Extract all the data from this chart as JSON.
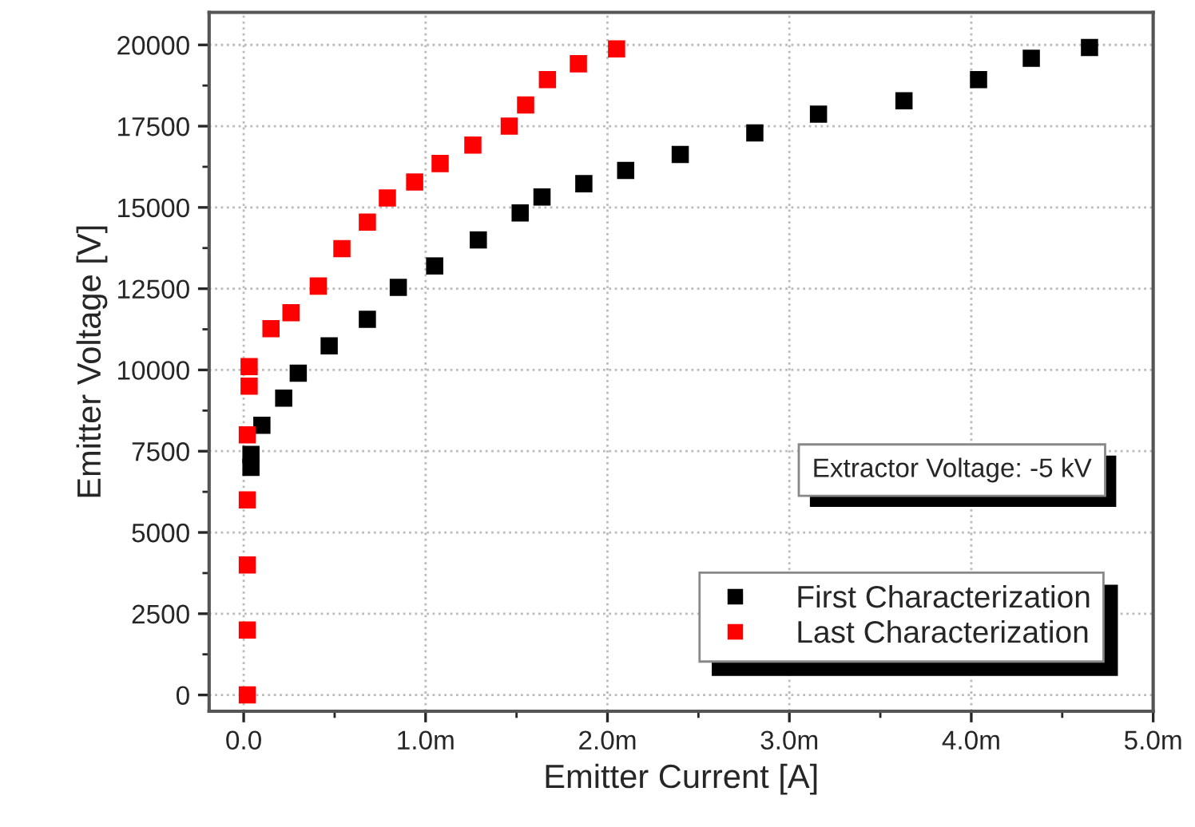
{
  "chart_data": {
    "type": "scatter",
    "xlabel": "Emitter Current [A]",
    "ylabel": "Emitter Voltage [V]",
    "annotations": [
      "Extractor Voltage: -5 kV"
    ],
    "marker": "square",
    "grid": true,
    "legend": "bottom right",
    "xlim": [
      -0.19,
      5.0
    ],
    "xticks": [
      {
        "value": 0,
        "label": "0.0"
      },
      {
        "value": 1,
        "label": "1.0m"
      },
      {
        "value": 2,
        "label": "2.0m"
      },
      {
        "value": 3,
        "label": "3.0m"
      },
      {
        "value": 4,
        "label": "4.0m"
      },
      {
        "value": 5,
        "label": "5.0m"
      }
    ],
    "ylim": [
      -500,
      21000
    ],
    "yticks": [
      0,
      2500,
      5000,
      7500,
      10000,
      12500,
      15000,
      17500,
      20000
    ],
    "series": [
      {
        "name": "First Characterization",
        "color": "#000000",
        "x": [
          0.04,
          0.04,
          0.1,
          0.22,
          0.3,
          0.47,
          0.68,
          0.85,
          1.05,
          1.29,
          1.52,
          1.64,
          1.87,
          2.1,
          2.4,
          2.81,
          3.16,
          3.63,
          4.04,
          4.33,
          4.65
        ],
        "values": [
          7000,
          7400,
          8300,
          9130,
          9900,
          10740,
          11560,
          12540,
          13200,
          14000,
          14830,
          15320,
          15730,
          16140,
          16630,
          17290,
          17870,
          18280,
          18930,
          19590,
          19920
        ]
      },
      {
        "name": "Last Characterization",
        "color": "#ff0000",
        "x": [
          0.02,
          0.02,
          0.02,
          0.02,
          0.02,
          0.03,
          0.03,
          0.15,
          0.26,
          0.41,
          0.54,
          0.68,
          0.79,
          0.94,
          1.08,
          1.26,
          1.46,
          1.55,
          1.67,
          1.84,
          2.05
        ],
        "values": [
          0,
          2000,
          4000,
          6000,
          8000,
          9500,
          10100,
          11270,
          11760,
          12580,
          13730,
          14550,
          15290,
          15780,
          16350,
          16920,
          17500,
          18150,
          18930,
          19420,
          19880
        ]
      }
    ]
  }
}
